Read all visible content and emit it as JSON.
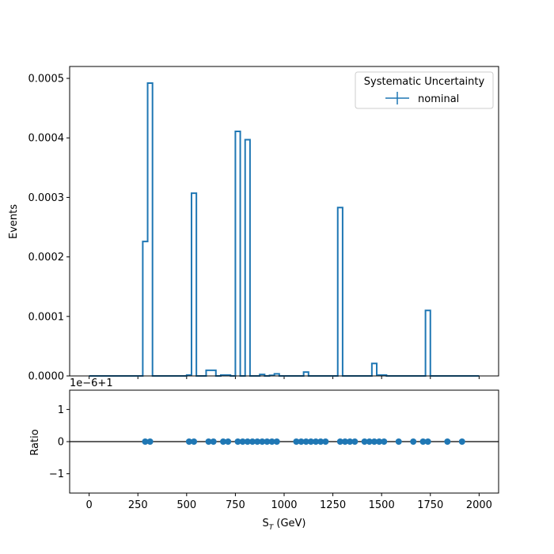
{
  "colors": {
    "series": "#1f77b4",
    "axes": "#000000",
    "legend_border": "#cccccc",
    "background": "#ffffff"
  },
  "chart_data": [
    {
      "type": "histogram-step",
      "panel": "main",
      "title": "",
      "xlabel": "",
      "ylabel": "Events",
      "xlim": [
        -100,
        2100
      ],
      "ylim": [
        0,
        0.00052
      ],
      "xticks": [
        0,
        250,
        500,
        750,
        1000,
        1250,
        1500,
        1750,
        2000
      ],
      "yticks": [
        0.0,
        0.0001,
        0.0002,
        0.0003,
        0.0004,
        0.0005
      ],
      "ytick_labels": [
        "0.0000",
        "0.0001",
        "0.0002",
        "0.0003",
        "0.0004",
        "0.0005"
      ],
      "xtick_labels_visible": false,
      "legend": {
        "title": "Systematic Uncertainty",
        "entries": [
          "nominal"
        ],
        "placement": "top-right"
      },
      "bin_edges": [
        0,
        25,
        50,
        75,
        100,
        125,
        150,
        175,
        200,
        225,
        250,
        275,
        300,
        325,
        350,
        375,
        400,
        425,
        450,
        475,
        500,
        525,
        550,
        575,
        600,
        625,
        650,
        675,
        700,
        725,
        750,
        775,
        800,
        825,
        850,
        875,
        900,
        925,
        950,
        975,
        1000,
        1025,
        1050,
        1075,
        1100,
        1125,
        1150,
        1175,
        1200,
        1225,
        1250,
        1275,
        1300,
        1325,
        1350,
        1375,
        1400,
        1425,
        1450,
        1475,
        1500,
        1525,
        1550,
        1575,
        1600,
        1625,
        1650,
        1675,
        1700,
        1725,
        1750,
        1775,
        1800,
        1825,
        1850,
        1875,
        1900,
        1925,
        1950,
        1975,
        2000
      ],
      "series": [
        {
          "name": "nominal",
          "values": [
            0,
            0,
            0,
            0,
            0,
            0,
            0,
            0,
            0,
            0,
            0,
            0.000226,
            0.000492,
            0,
            0,
            0,
            0,
            0,
            0,
            0,
            1.5e-06,
            0.000307,
            0,
            0,
            9.5e-06,
            9.5e-06,
            0,
            1.5e-06,
            1.5e-06,
            0,
            0.000411,
            0,
            0.000397,
            0,
            0,
            2.5e-06,
            0,
            1e-06,
            3.5e-06,
            0,
            0,
            0,
            0,
            0,
            6.5e-06,
            0,
            0,
            0,
            0,
            0,
            0,
            0.000283,
            0,
            0,
            0,
            0,
            0,
            0,
            2.1e-05,
            1.5e-06,
            1.5e-06,
            0,
            0,
            0,
            0,
            0,
            0,
            0,
            0,
            0.00011,
            0,
            0,
            0,
            0,
            0,
            0,
            0,
            0,
            0,
            0
          ]
        }
      ]
    },
    {
      "type": "scatter",
      "panel": "ratio",
      "title": "",
      "xlabel": "S_T (GeV)",
      "xlabel_main": "S",
      "xlabel_sub": "T",
      "xlabel_unit": " (GeV)",
      "ylabel": "Ratio",
      "offset_text": "1e−6+1",
      "xlim": [
        -100,
        2100
      ],
      "ylim": [
        -1.6,
        1.6
      ],
      "xticks": [
        0,
        250,
        500,
        750,
        1000,
        1250,
        1500,
        1750,
        2000
      ],
      "xtick_labels": [
        "0",
        "250",
        "500",
        "750",
        "1000",
        "1250",
        "1500",
        "1750",
        "2000"
      ],
      "yticks": [
        -1,
        0,
        1
      ],
      "ytick_labels": [
        "−1",
        "0",
        "1"
      ],
      "reference_line_y": 0,
      "series": [
        {
          "x": [
            287.5,
            312.5,
            512.5,
            537.5,
            612.5,
            637.5,
            687.5,
            712.5,
            762.5,
            787.5,
            812.5,
            837.5,
            862.5,
            887.5,
            912.5,
            937.5,
            962.5,
            1062.5,
            1087.5,
            1112.5,
            1137.5,
            1162.5,
            1187.5,
            1212.5,
            1287.5,
            1312.5,
            1337.5,
            1362.5,
            1412.5,
            1437.5,
            1462.5,
            1487.5,
            1512.5,
            1587.5,
            1662.5,
            1712.5,
            1737.5,
            1837.5,
            1912.5
          ],
          "y": [
            0,
            0,
            0,
            0,
            0,
            0,
            0,
            0,
            0,
            0,
            0,
            0,
            0,
            0,
            0,
            0,
            0,
            0,
            0,
            0,
            0,
            0,
            0,
            0,
            0,
            0,
            0,
            0,
            0,
            0,
            0,
            0,
            0,
            0,
            0,
            0,
            0,
            0,
            0
          ]
        }
      ]
    }
  ]
}
